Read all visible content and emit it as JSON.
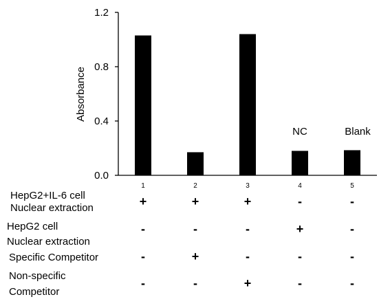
{
  "chart_data": {
    "type": "bar",
    "categories": [
      "1",
      "2",
      "3",
      "4",
      "5"
    ],
    "values": [
      1.03,
      0.17,
      1.04,
      0.18,
      0.185
    ],
    "ylabel": "Absorbance",
    "xlabel": "",
    "title": "",
    "ylim": [
      0,
      1.2
    ],
    "yticks": [
      "0.0",
      "0.4",
      "0.8",
      "1.2"
    ],
    "bar_annotations": [
      "",
      "",
      "",
      "NC",
      "Blank"
    ],
    "bar_color": "#000000",
    "grid": false,
    "legend": "none"
  },
  "conditions": [
    {
      "label_lines": [
        "HepG2+IL-6 cell",
        "Nuclear extraction"
      ],
      "signs": [
        "+",
        "+",
        "+",
        "-",
        "-"
      ]
    },
    {
      "label_lines": [
        "HepG2 cell",
        "Nuclear extraction"
      ],
      "signs": [
        "-",
        "-",
        "-",
        "+",
        "-"
      ]
    },
    {
      "label_lines": [
        "Specific Competitor"
      ],
      "signs": [
        "-",
        "+",
        "-",
        "-",
        "-"
      ]
    },
    {
      "label_lines": [
        "Non-specific",
        "Competitor"
      ],
      "signs": [
        "-",
        "-",
        "+",
        "-",
        "-"
      ]
    }
  ]
}
